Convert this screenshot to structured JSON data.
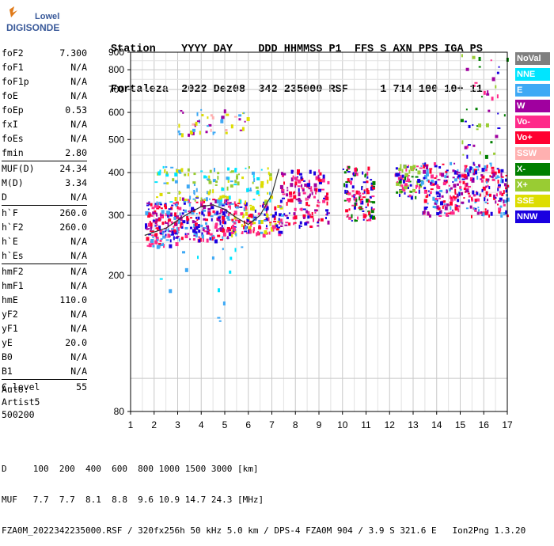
{
  "logo": {
    "top": "Lowell",
    "bottom": "DIGISONDE"
  },
  "header": {
    "line1": "Station    YYYY DAY    DDD HHMMSS P1  FFS S AXN PPS IGA PS",
    "line2": "Fortaleza  2022 Dez08  342 235000 RSF     1 714 100 10+ 11"
  },
  "params": {
    "group1": [
      {
        "name": "foF2",
        "value": "7.300"
      },
      {
        "name": "foF1",
        "value": "N/A"
      },
      {
        "name": "foF1p",
        "value": "N/A"
      },
      {
        "name": "foE",
        "value": "N/A"
      },
      {
        "name": "foEp",
        "value": "0.53"
      },
      {
        "name": "fxI",
        "value": "N/A"
      },
      {
        "name": "foEs",
        "value": "N/A"
      },
      {
        "name": "fmin",
        "value": "2.80"
      }
    ],
    "group2": [
      {
        "name": "MUF(D)",
        "value": "24.34"
      },
      {
        "name": "M(D)",
        "value": "3.34"
      },
      {
        "name": "D",
        "value": "N/A"
      }
    ],
    "group3": [
      {
        "name": "h`F",
        "value": "260.0"
      },
      {
        "name": "h`F2",
        "value": "260.0"
      },
      {
        "name": "h`E",
        "value": "N/A"
      },
      {
        "name": "h`Es",
        "value": "N/A"
      }
    ],
    "group4": [
      {
        "name": "hmF2",
        "value": "N/A"
      },
      {
        "name": "hmF1",
        "value": "N/A"
      },
      {
        "name": "hmE",
        "value": "110.0"
      },
      {
        "name": "yF2",
        "value": "N/A"
      },
      {
        "name": "yF1",
        "value": "N/A"
      },
      {
        "name": "yE",
        "value": "20.0"
      },
      {
        "name": "B0",
        "value": "N/A"
      },
      {
        "name": "B1",
        "value": "N/A"
      }
    ],
    "group5": [
      {
        "name": "C-level",
        "value": "55"
      }
    ]
  },
  "autoscale": {
    "line1": "Auto:",
    "line2": "Artist5",
    "line3": "500200"
  },
  "legend": [
    {
      "label": "NoVal",
      "color": "#7f7f7f"
    },
    {
      "label": "NNE",
      "color": "#00e5ff"
    },
    {
      "label": "E",
      "color": "#3fa9f5"
    },
    {
      "label": "W",
      "color": "#a0009f"
    },
    {
      "label": "Vo-",
      "color": "#ff2a8a"
    },
    {
      "label": "Vo+",
      "color": "#ff0030"
    },
    {
      "label": "SSW",
      "color": "#ffb0b0"
    },
    {
      "label": "X-",
      "color": "#007f00"
    },
    {
      "label": "X+",
      "color": "#99cc33"
    },
    {
      "label": "SSE",
      "color": "#dddd00"
    },
    {
      "label": "NNW",
      "color": "#1a00e0"
    }
  ],
  "bottom": {
    "line1": "D     100  200  400  600  800 1000 1500 3000 [km]",
    "line2": "MUF   7.7  7.7  8.1  8.8  9.6 10.9 14.7 24.3 [MHz]",
    "line3": "FZA0M_2022342235000.RSF / 320fx256h 50 kHz 5.0 km / DPS-4 FZA0M 904 / 3.9 S 321.6 E   Ion2Png 1.3.20"
  },
  "chart_data": {
    "type": "scatter",
    "title": "",
    "xlabel": "",
    "ylabel": "",
    "xlim": [
      1,
      17
    ],
    "ylim": [
      80,
      900
    ],
    "y_scale": "log",
    "x_ticks": [
      1,
      2,
      3,
      4,
      5,
      6,
      7,
      8,
      9,
      10,
      11,
      12,
      13,
      14,
      15,
      16,
      17
    ],
    "y_ticks": [
      80,
      200,
      300,
      400,
      500,
      600,
      700,
      800,
      900
    ],
    "grid": true,
    "legend_placement": "right",
    "trace_series": {
      "name": "",
      "x": [
        1.6,
        2.0,
        2.5,
        3.0,
        3.5,
        4.0,
        4.5,
        5.0,
        5.5,
        6.0,
        6.5,
        7.0,
        7.3
      ],
      "y": [
        262,
        268,
        275,
        290,
        305,
        318,
        322,
        312,
        295,
        282,
        300,
        345,
        410
      ]
    },
    "echo_clusters": [
      {
        "x": [
          1.6,
          3.0
        ],
        "y": [
          245,
          330
        ],
        "colors": [
          "#ff0030",
          "#ff2a8a",
          "#3fa9f5",
          "#a0009f",
          "#1a00e0"
        ],
        "density": 170
      },
      {
        "x": [
          3.0,
          5.2
        ],
        "y": [
          255,
          340
        ],
        "colors": [
          "#ff0030",
          "#ff2a8a",
          "#1a00e0",
          "#a0009f",
          "#3fa9f5"
        ],
        "density": 190
      },
      {
        "x": [
          5.2,
          7.4
        ],
        "y": [
          265,
          330
        ],
        "colors": [
          "#ff0030",
          "#ff2a8a",
          "#dddd00",
          "#1a00e0",
          "#3fa9f5"
        ],
        "density": 150
      },
      {
        "x": [
          2.0,
          7.0
        ],
        "y": [
          330,
          420
        ],
        "colors": [
          "#3fa9f5",
          "#00e5ff",
          "#dddd00",
          "#99cc33"
        ],
        "density": 130
      },
      {
        "x": [
          7.3,
          9.4
        ],
        "y": [
          280,
          410
        ],
        "colors": [
          "#1a00e0",
          "#ff0030",
          "#ff2a8a",
          "#a0009f"
        ],
        "density": 150
      },
      {
        "x": [
          10.0,
          11.3
        ],
        "y": [
          290,
          420
        ],
        "colors": [
          "#1a00e0",
          "#ff0030",
          "#ff2a8a",
          "#007f00"
        ],
        "density": 120
      },
      {
        "x": [
          12.2,
          13.3
        ],
        "y": [
          340,
          425
        ],
        "colors": [
          "#1a00e0",
          "#ff2a8a",
          "#007f00",
          "#99cc33"
        ],
        "density": 80
      },
      {
        "x": [
          13.3,
          17.0
        ],
        "y": [
          300,
          430
        ],
        "colors": [
          "#1a00e0",
          "#3fa9f5",
          "#ff2a8a",
          "#a0009f",
          "#ff0030"
        ],
        "density": 330
      },
      {
        "x": [
          3.0,
          6.0
        ],
        "y": [
          520,
          620
        ],
        "colors": [
          "#dddd00",
          "#ffb0b0",
          "#a0009f",
          "#3fa9f5"
        ],
        "density": 45
      },
      {
        "x": [
          1.8,
          6.0
        ],
        "y": [
          140,
          250
        ],
        "colors": [
          "#3fa9f5",
          "#00e5ff"
        ],
        "density": 15
      },
      {
        "x": [
          15.0,
          17.0
        ],
        "y": [
          450,
          900
        ],
        "colors": [
          "#1a00e0",
          "#007f00",
          "#a0009f",
          "#99cc33",
          "#ff2a8a"
        ],
        "density": 45
      }
    ]
  }
}
